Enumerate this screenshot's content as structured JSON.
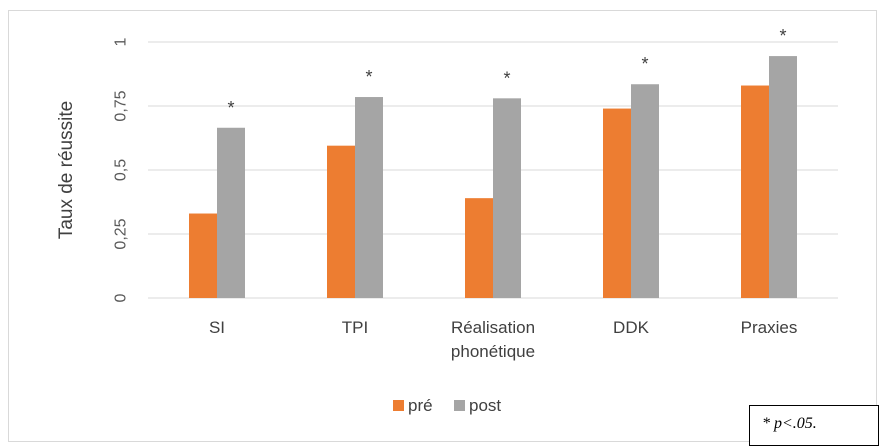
{
  "chart_data": {
    "type": "bar",
    "title": "",
    "xlabel": "",
    "ylabel": "Taux de réussite",
    "ylim": [
      0,
      1
    ],
    "yticks": [
      "0",
      "0,25",
      "0,5",
      "0,75",
      "1"
    ],
    "ytick_values": [
      0,
      0.25,
      0.5,
      0.75,
      1
    ],
    "grid": true,
    "legend_position": "bottom",
    "categories": [
      [
        "SI"
      ],
      [
        "TPI"
      ],
      [
        "Réalisation",
        "phonétique"
      ],
      [
        "DDK"
      ],
      [
        "Praxies"
      ]
    ],
    "series": [
      {
        "name": "pré",
        "color": "#ed7d31",
        "values": [
          0.33,
          0.595,
          0.39,
          0.74,
          0.83
        ]
      },
      {
        "name": "post",
        "color": "#a5a5a5",
        "values": [
          0.665,
          0.785,
          0.78,
          0.835,
          0.945
        ]
      }
    ],
    "significance": [
      "*",
      "*",
      "*",
      "*",
      "*"
    ],
    "note": "* p<.05."
  }
}
